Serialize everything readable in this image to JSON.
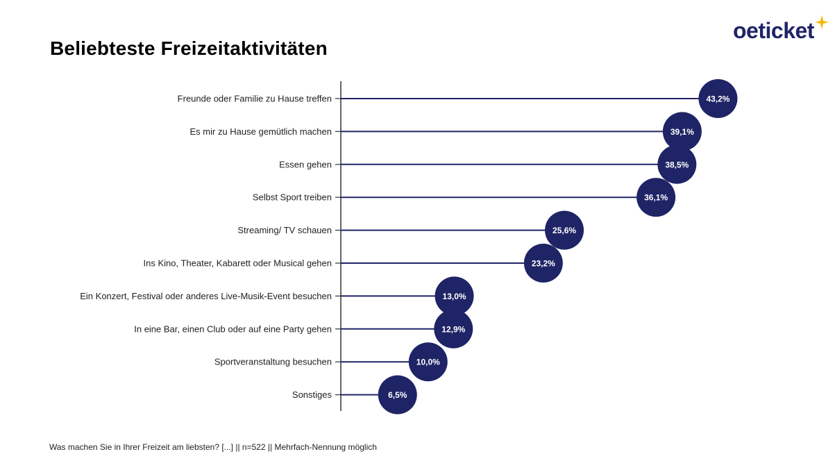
{
  "title": "Beliebteste Freizeitaktivitäten",
  "logo": {
    "text": "oeticket",
    "icon": "sparkle-star-icon",
    "text_color": "#1f2466",
    "star_color": "#f5b800"
  },
  "footnote": "Was machen Sie in Ihrer Freizeit am liebsten? [...] || n=522 || Mehrfach-Nennung möglich",
  "colors": {
    "marker": "#1f2466",
    "line": "#1f2466",
    "axis": "#333333"
  },
  "chart_data": {
    "type": "bar",
    "style": "lollipop",
    "orientation": "horizontal",
    "categories": [
      "Freunde oder Familie zu Hause treffen",
      "Es mir zu Hause gemütlich machen",
      "Essen gehen",
      "Selbst Sport treiben",
      "Streaming/ TV schauen",
      "Ins Kino, Theater, Kabarett oder Musical gehen",
      "Ein Konzert, Festival oder anderes Live-Musik-Event besuchen",
      "In eine Bar, einen Club oder auf eine Party gehen",
      "Sportveranstaltung besuchen",
      "Sonstiges"
    ],
    "values": [
      43.2,
      39.1,
      38.5,
      36.1,
      25.6,
      23.2,
      13.0,
      12.9,
      10.0,
      6.5
    ],
    "value_labels": [
      "43,2%",
      "39,1%",
      "38,5%",
      "36,1%",
      "25,6%",
      "23,2%",
      "13,0%",
      "12,9%",
      "10,0%",
      "6,5%"
    ],
    "xlabel": "",
    "ylabel": "",
    "xlim": [
      0,
      45
    ],
    "grid": false,
    "legend": "none"
  }
}
